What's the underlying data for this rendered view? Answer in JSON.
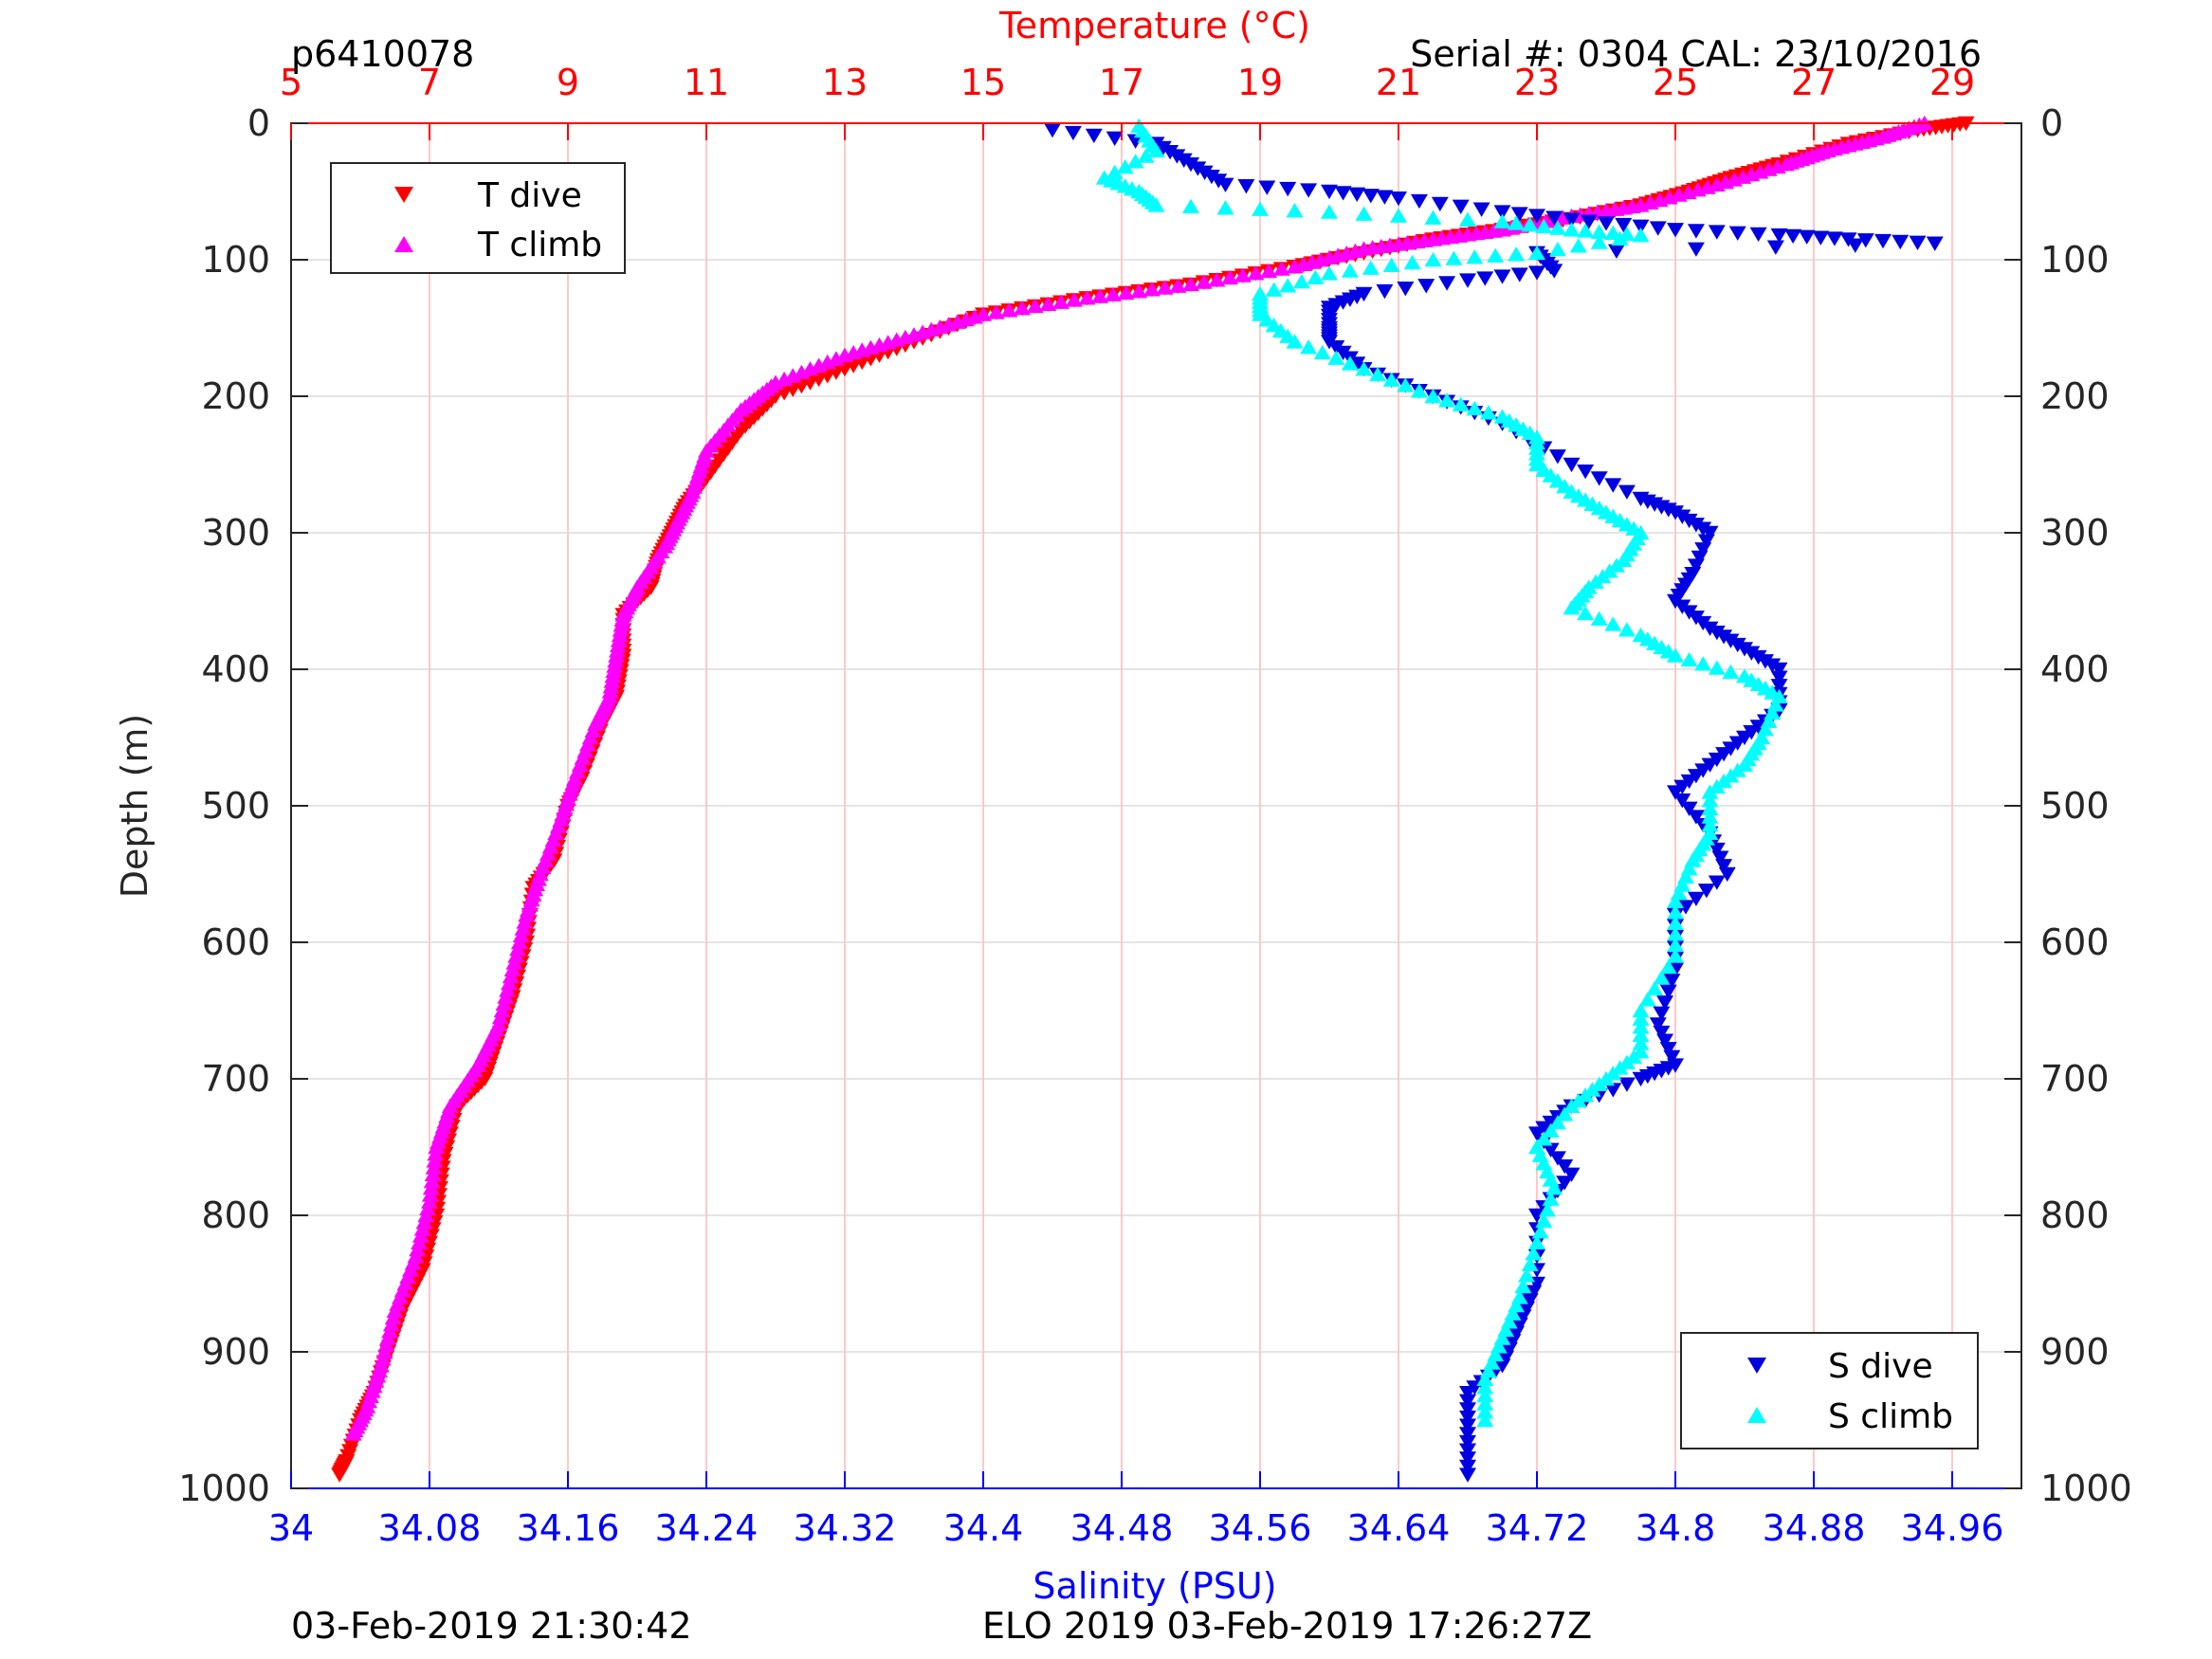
{
  "header": {
    "glider_id": "p6410078",
    "serial": "Serial #: 0304  CAL: 23/10/2016"
  },
  "footer": {
    "left": "03-Feb-2019 21:30:42",
    "center": "ELO 2019 03-Feb-2019 17:26:27Z"
  },
  "colors": {
    "t_dive": "#ff0000",
    "t_climb": "#ff00ff",
    "s_dive": "#0000e0",
    "s_climb": "#00ffff",
    "temperature_axis": "#ff0000",
    "salinity_axis": "#0000ff",
    "grid": "#ffc8c8"
  },
  "chart_data": {
    "type": "scatter",
    "y_axis": {
      "label": "Depth (m)",
      "range": [
        0,
        1000
      ],
      "reversed": true,
      "ticks": [
        0,
        100,
        200,
        300,
        400,
        500,
        600,
        700,
        800,
        900,
        1000
      ],
      "tick_labels": [
        "0",
        "100",
        "200",
        "300",
        "400",
        "500",
        "600",
        "700",
        "800",
        "900",
        "1000"
      ]
    },
    "x_top": {
      "label": "Temperature (°C)",
      "range": [
        5,
        30
      ],
      "ticks": [
        5,
        7,
        9,
        11,
        13,
        15,
        17,
        19,
        21,
        23,
        25,
        27,
        29
      ],
      "tick_labels": [
        "5",
        "7",
        "9",
        "11",
        "13",
        "15",
        "17",
        "19",
        "21",
        "23",
        "25",
        "27",
        "29"
      ]
    },
    "x_bottom": {
      "label": "Salinity (PSU)",
      "range": [
        34,
        35
      ],
      "ticks": [
        34,
        34.08,
        34.16,
        34.24,
        34.32,
        34.4,
        34.48,
        34.56,
        34.64,
        34.72,
        34.8,
        34.88,
        34.96
      ],
      "tick_labels": [
        "34",
        "34.08",
        "34.16",
        "34.24",
        "34.32",
        "34.4",
        "34.48",
        "34.56",
        "34.64",
        "34.72",
        "34.8",
        "34.88",
        "34.96"
      ]
    },
    "grid": true,
    "legends": [
      {
        "placement": "top-left",
        "entries": [
          "T dive",
          "T climb"
        ]
      },
      {
        "placement": "bottom-right",
        "entries": [
          "S dive",
          "S climb"
        ]
      }
    ],
    "series": [
      {
        "name": "T dive",
        "axis": "temperature",
        "marker": "triangle-down",
        "points": [
          [
            29.2,
            0
          ],
          [
            28.5,
            5
          ],
          [
            27.5,
            15
          ],
          [
            26.5,
            30
          ],
          [
            25.8,
            40
          ],
          [
            25.2,
            50
          ],
          [
            24.5,
            60
          ],
          [
            23.5,
            70
          ],
          [
            22.5,
            78
          ],
          [
            21.5,
            85
          ],
          [
            20.5,
            95
          ],
          [
            19.5,
            105
          ],
          [
            18.0,
            118
          ],
          [
            16.5,
            128
          ],
          [
            15.0,
            140
          ],
          [
            14.0,
            160
          ],
          [
            13.0,
            180
          ],
          [
            12.0,
            200
          ],
          [
            11.5,
            225
          ],
          [
            11.0,
            260
          ],
          [
            10.7,
            280
          ],
          [
            10.5,
            300
          ],
          [
            10.3,
            320
          ],
          [
            10.2,
            340
          ],
          [
            9.8,
            360
          ],
          [
            9.8,
            390
          ],
          [
            9.7,
            420
          ],
          [
            9.5,
            440
          ],
          [
            9.2,
            480
          ],
          [
            9.0,
            500
          ],
          [
            8.8,
            540
          ],
          [
            8.5,
            560
          ],
          [
            8.4,
            600
          ],
          [
            8.2,
            640
          ],
          [
            8.0,
            670
          ],
          [
            7.8,
            700
          ],
          [
            7.4,
            720
          ],
          [
            7.2,
            760
          ],
          [
            7.1,
            800
          ],
          [
            6.9,
            840
          ],
          [
            6.6,
            870
          ],
          [
            6.4,
            900
          ],
          [
            6.2,
            930
          ],
          [
            6.0,
            950
          ],
          [
            5.8,
            980
          ],
          [
            5.7,
            990
          ]
        ]
      },
      {
        "name": "T climb",
        "axis": "temperature",
        "marker": "triangle-up",
        "points": [
          [
            28.6,
            0
          ],
          [
            28.0,
            10
          ],
          [
            27.2,
            20
          ],
          [
            26.6,
            30
          ],
          [
            25.6,
            45
          ],
          [
            24.5,
            60
          ],
          [
            23.5,
            68
          ],
          [
            22.5,
            78
          ],
          [
            21.5,
            85
          ],
          [
            20.5,
            92
          ],
          [
            19.5,
            105
          ],
          [
            18.0,
            118
          ],
          [
            16.5,
            128
          ],
          [
            15.0,
            140
          ],
          [
            14.0,
            155
          ],
          [
            13.0,
            170
          ],
          [
            12.0,
            190
          ],
          [
            11.5,
            210
          ],
          [
            11.0,
            240
          ],
          [
            10.8,
            270
          ],
          [
            10.6,
            290
          ],
          [
            10.4,
            310
          ],
          [
            10.0,
            340
          ],
          [
            9.8,
            360
          ],
          [
            9.7,
            390
          ],
          [
            9.6,
            420
          ],
          [
            9.4,
            440
          ],
          [
            9.1,
            480
          ],
          [
            8.9,
            510
          ],
          [
            8.6,
            550
          ],
          [
            8.4,
            580
          ],
          [
            8.2,
            620
          ],
          [
            8.0,
            660
          ],
          [
            7.7,
            690
          ],
          [
            7.3,
            720
          ],
          [
            7.1,
            750
          ],
          [
            7.0,
            790
          ],
          [
            6.8,
            830
          ],
          [
            6.5,
            870
          ],
          [
            6.3,
            910
          ],
          [
            6.1,
            940
          ],
          [
            5.9,
            960
          ]
        ]
      },
      {
        "name": "S dive",
        "axis": "salinity",
        "marker": "triangle-down",
        "points": [
          [
            34.44,
            5
          ],
          [
            34.5,
            15
          ],
          [
            34.52,
            30
          ],
          [
            34.54,
            45
          ],
          [
            34.6,
            50
          ],
          [
            34.64,
            55
          ],
          [
            34.7,
            65
          ],
          [
            34.75,
            72
          ],
          [
            34.8,
            78
          ],
          [
            34.86,
            82
          ],
          [
            34.9,
            85
          ],
          [
            34.95,
            88
          ],
          [
            34.72,
            95
          ],
          [
            34.73,
            108
          ],
          [
            34.68,
            115
          ],
          [
            34.62,
            125
          ],
          [
            34.6,
            135
          ],
          [
            34.6,
            150
          ],
          [
            34.6,
            160
          ],
          [
            34.62,
            180
          ],
          [
            34.66,
            200
          ],
          [
            34.7,
            220
          ],
          [
            34.74,
            250
          ],
          [
            34.78,
            275
          ],
          [
            34.8,
            285
          ],
          [
            34.82,
            300
          ],
          [
            34.81,
            330
          ],
          [
            34.8,
            350
          ],
          [
            34.82,
            370
          ],
          [
            34.84,
            385
          ],
          [
            34.86,
            400
          ],
          [
            34.86,
            430
          ],
          [
            34.84,
            450
          ],
          [
            34.82,
            470
          ],
          [
            34.8,
            490
          ],
          [
            34.82,
            520
          ],
          [
            34.83,
            550
          ],
          [
            34.8,
            580
          ],
          [
            34.8,
            620
          ],
          [
            34.79,
            660
          ],
          [
            34.8,
            690
          ],
          [
            34.78,
            700
          ],
          [
            34.74,
            720
          ],
          [
            34.72,
            740
          ],
          [
            34.74,
            770
          ],
          [
            34.72,
            800
          ],
          [
            34.72,
            850
          ],
          [
            34.71,
            880
          ],
          [
            34.7,
            910
          ],
          [
            34.68,
            930
          ],
          [
            34.68,
            960
          ],
          [
            34.68,
            990
          ]
        ]
      },
      {
        "name": "S climb",
        "axis": "salinity",
        "marker": "triangle-up",
        "points": [
          [
            34.49,
            2
          ],
          [
            34.5,
            20
          ],
          [
            34.47,
            40
          ],
          [
            34.49,
            50
          ],
          [
            34.5,
            60
          ],
          [
            34.6,
            65
          ],
          [
            34.7,
            72
          ],
          [
            34.74,
            78
          ],
          [
            34.78,
            82
          ],
          [
            34.72,
            95
          ],
          [
            34.66,
            100
          ],
          [
            34.6,
            110
          ],
          [
            34.56,
            125
          ],
          [
            34.56,
            140
          ],
          [
            34.58,
            160
          ],
          [
            34.62,
            180
          ],
          [
            34.66,
            200
          ],
          [
            34.7,
            215
          ],
          [
            34.72,
            230
          ],
          [
            34.72,
            250
          ],
          [
            34.74,
            270
          ],
          [
            34.76,
            285
          ],
          [
            34.78,
            300
          ],
          [
            34.77,
            320
          ],
          [
            34.75,
            340
          ],
          [
            34.74,
            355
          ],
          [
            34.78,
            375
          ],
          [
            34.8,
            390
          ],
          [
            34.84,
            405
          ],
          [
            34.86,
            420
          ],
          [
            34.85,
            450
          ],
          [
            34.84,
            470
          ],
          [
            34.82,
            490
          ],
          [
            34.82,
            520
          ],
          [
            34.81,
            540
          ],
          [
            34.8,
            570
          ],
          [
            34.8,
            610
          ],
          [
            34.78,
            650
          ],
          [
            34.78,
            680
          ],
          [
            34.76,
            700
          ],
          [
            34.74,
            720
          ],
          [
            34.72,
            750
          ],
          [
            34.73,
            780
          ],
          [
            34.72,
            820
          ],
          [
            34.71,
            860
          ],
          [
            34.7,
            890
          ],
          [
            34.69,
            920
          ],
          [
            34.69,
            950
          ]
        ]
      }
    ]
  }
}
